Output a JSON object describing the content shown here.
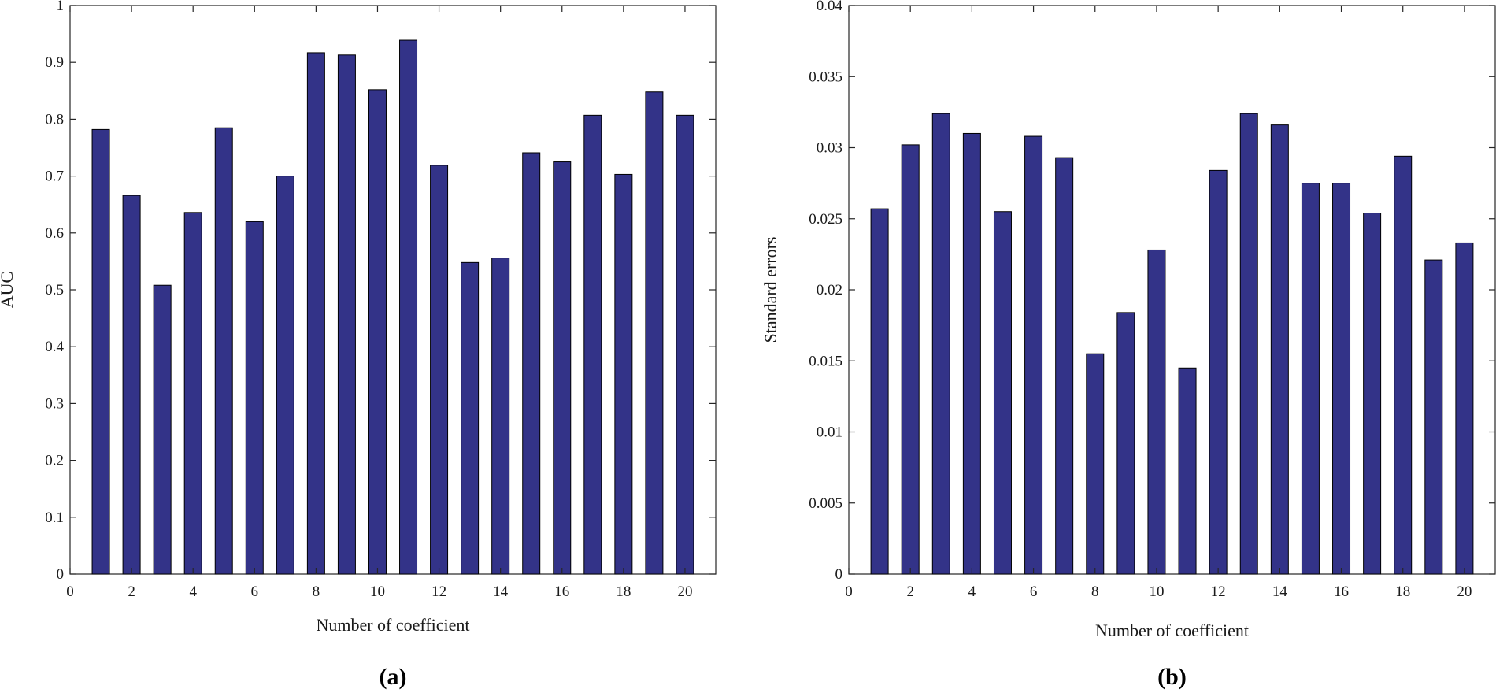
{
  "chart_data": [
    {
      "type": "bar",
      "panel_label": "(a)",
      "xlabel": "Number of coefficient",
      "ylabel": "AUC",
      "xlim": [
        0,
        21
      ],
      "ylim": [
        0,
        1
      ],
      "xticks": [
        0,
        2,
        4,
        6,
        8,
        10,
        12,
        14,
        16,
        18,
        20
      ],
      "yticks": [
        0,
        0.1,
        0.2,
        0.3,
        0.4,
        0.5,
        0.6,
        0.7,
        0.8,
        0.9,
        1
      ],
      "ytick_labels": [
        "0",
        "0.1",
        "0.2",
        "0.3",
        "0.4",
        "0.5",
        "0.6",
        "0.7",
        "0.8",
        "0.9",
        "1"
      ],
      "x": [
        1,
        2,
        3,
        4,
        5,
        6,
        7,
        8,
        9,
        10,
        11,
        12,
        13,
        14,
        15,
        16,
        17,
        18,
        19,
        20
      ],
      "values": [
        0.782,
        0.666,
        0.508,
        0.636,
        0.785,
        0.62,
        0.7,
        0.917,
        0.913,
        0.852,
        0.939,
        0.719,
        0.548,
        0.556,
        0.741,
        0.725,
        0.807,
        0.703,
        0.848,
        0.807
      ],
      "bar_color": "#333388",
      "grid": false,
      "legend": "none"
    },
    {
      "type": "bar",
      "panel_label": "(b)",
      "xlabel": "Number of coefficient",
      "ylabel": "Standard errors",
      "xlim": [
        0,
        21
      ],
      "ylim": [
        0,
        0.04
      ],
      "xticks": [
        0,
        2,
        4,
        6,
        8,
        10,
        12,
        14,
        16,
        18,
        20
      ],
      "yticks": [
        0,
        0.005,
        0.01,
        0.015,
        0.02,
        0.025,
        0.03,
        0.035,
        0.04
      ],
      "ytick_labels": [
        "0",
        "0.005",
        "0.01",
        "0.015",
        "0.02",
        "0.025",
        "0.03",
        "0.035",
        "0.04"
      ],
      "x": [
        1,
        2,
        3,
        4,
        5,
        6,
        7,
        8,
        9,
        10,
        11,
        12,
        13,
        14,
        15,
        16,
        17,
        18,
        19,
        20
      ],
      "values": [
        0.0257,
        0.0302,
        0.0324,
        0.031,
        0.0255,
        0.0308,
        0.0293,
        0.0155,
        0.0184,
        0.0228,
        0.0145,
        0.0284,
        0.0324,
        0.0316,
        0.0275,
        0.0275,
        0.0254,
        0.0294,
        0.0221,
        0.0233
      ],
      "bar_color": "#333388",
      "grid": false,
      "legend": "none"
    }
  ]
}
